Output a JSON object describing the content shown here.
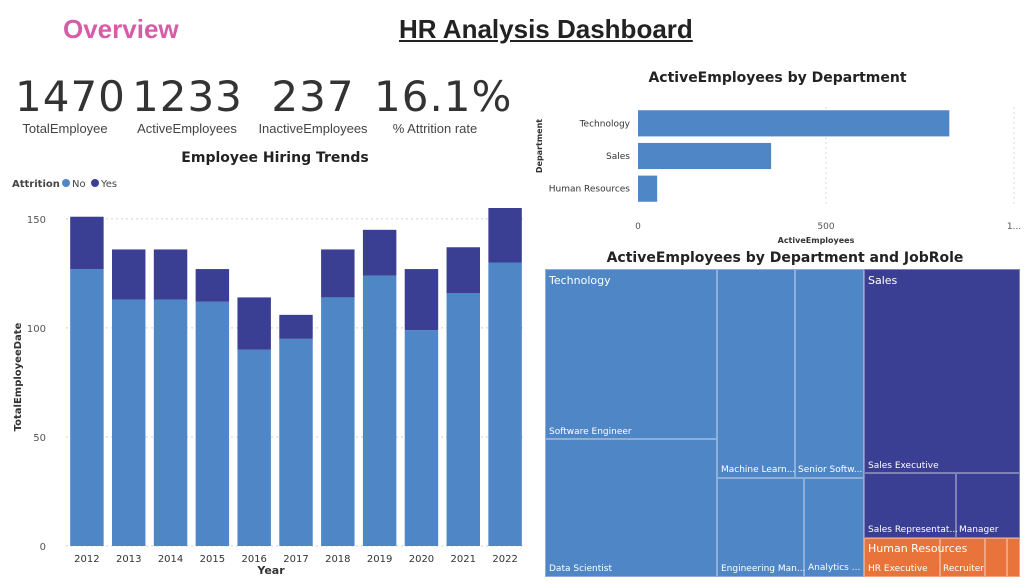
{
  "header": {
    "overview": "Overview",
    "title": "HR Analysis Dashboard"
  },
  "kpis": [
    {
      "value": "1470",
      "label": "TotalEmployee"
    },
    {
      "value": "1233",
      "label": "ActiveEmployees"
    },
    {
      "value": "237",
      "label": "InactiveEmployees"
    },
    {
      "value": "16.1%",
      "label": "% Attrition rate"
    }
  ],
  "colors": {
    "no": "#4f86c6",
    "yes": "#3b3f93",
    "sales": "#3b3f93",
    "tech": "#4f86c6",
    "hr": "#e8743b"
  },
  "chart_data": [
    {
      "type": "bar",
      "stacked": true,
      "title": "Employee Hiring Trends",
      "legend": {
        "title": "Attrition",
        "placement": "top-left"
      },
      "xlabel": "Year",
      "ylabel": "TotalEmployeeDate",
      "ylim": [
        0,
        155
      ],
      "yticks": [
        0,
        50,
        100,
        150
      ],
      "categories": [
        "2012",
        "2013",
        "2014",
        "2015",
        "2016",
        "2017",
        "2018",
        "2019",
        "2020",
        "2021",
        "2022"
      ],
      "series": [
        {
          "name": "No",
          "values": [
            127,
            113,
            113,
            112,
            90,
            95,
            114,
            124,
            99,
            116,
            130
          ]
        },
        {
          "name": "Yes",
          "values": [
            24,
            23,
            23,
            15,
            24,
            11,
            22,
            21,
            28,
            21,
            25
          ]
        }
      ]
    },
    {
      "type": "bar",
      "orientation": "horizontal",
      "title": "ActiveEmployees by Department",
      "xlabel": "ActiveEmployees",
      "ylabel": "Department",
      "xlim": [
        0,
        1000
      ],
      "xticks": [
        "0",
        "500",
        "1..."
      ],
      "categories": [
        "Technology",
        "Sales",
        "Human Resources"
      ],
      "values": [
        828,
        354,
        51
      ]
    },
    {
      "type": "treemap",
      "title": "ActiveEmployees by Department and JobRole",
      "groups": [
        {
          "name": "Technology",
          "roles": [
            "Software Engineer",
            "Data Scientist",
            "Machine Learn...",
            "Senior Softw...",
            "Engineering Man...",
            "Analytics ..."
          ]
        },
        {
          "name": "Sales",
          "roles": [
            "Sales Executive",
            "Sales Representat...",
            "Manager"
          ]
        },
        {
          "name": "Human Resources",
          "roles": [
            "HR Executive",
            "Recruiter"
          ]
        }
      ]
    }
  ]
}
